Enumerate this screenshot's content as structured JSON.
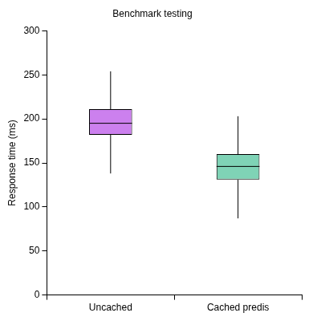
{
  "chart_data": {
    "type": "box",
    "title": "Benchmark testing",
    "y_label": "Response time (ms)",
    "categories": [
      "Uncached",
      "Cached predis"
    ],
    "min": [
      138,
      87
    ],
    "q1": [
      182,
      131
    ],
    "median": [
      195,
      146
    ],
    "q3": [
      211,
      160
    ],
    "max": [
      254,
      203
    ],
    "colors": [
      "#cc80ee",
      "#7fd3b6"
    ],
    "ylim": [
      0,
      300
    ],
    "yticks": [
      0,
      50,
      100,
      150,
      200,
      250,
      300
    ],
    "grid": false
  }
}
